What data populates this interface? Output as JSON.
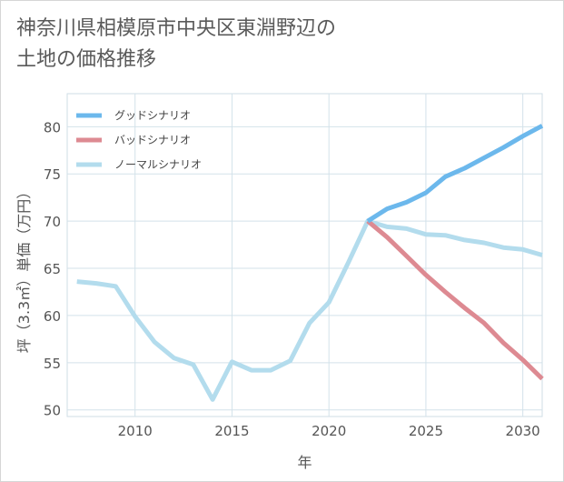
{
  "title_line1": "神奈川県相模原市中央区東淵野辺の",
  "title_line2": "土地の価格推移",
  "chart_data": {
    "type": "line",
    "xlabel": "年",
    "ylabel": "坪（3.3㎡）単価（万円）",
    "xlim": [
      2006.5,
      2031
    ],
    "ylim": [
      49.3,
      83.5
    ],
    "xticks": [
      2010,
      2015,
      2020,
      2025,
      2030
    ],
    "yticks": [
      50,
      55,
      60,
      65,
      70,
      75,
      80
    ],
    "grid": true,
    "legend_position": "top-left",
    "series": [
      {
        "name": "グッドシナリオ",
        "color": "#6cb8ec",
        "x": [
          2022,
          2023,
          2024,
          2025,
          2026,
          2027,
          2028,
          2029,
          2030,
          2031
        ],
        "y": [
          70.0,
          71.3,
          72.0,
          73.0,
          74.7,
          75.6,
          76.7,
          77.8,
          79.0,
          80.1
        ]
      },
      {
        "name": "バッドシナリオ",
        "color": "#dd8a92",
        "x": [
          2022,
          2023,
          2024,
          2025,
          2026,
          2027,
          2028,
          2029,
          2030,
          2031
        ],
        "y": [
          70.0,
          68.3,
          66.3,
          64.3,
          62.5,
          60.8,
          59.2,
          57.1,
          55.3,
          53.3
        ]
      },
      {
        "name": "ノーマルシナリオ",
        "color": "#b3dced",
        "x": [
          2007,
          2008,
          2009,
          2010,
          2011,
          2012,
          2013,
          2014,
          2015,
          2016,
          2017,
          2018,
          2019,
          2020,
          2021,
          2022,
          2023,
          2024,
          2025,
          2026,
          2027,
          2028,
          2029,
          2030,
          2031
        ],
        "y": [
          63.6,
          63.4,
          63.1,
          59.9,
          57.2,
          55.5,
          54.8,
          51.1,
          55.1,
          54.2,
          54.2,
          55.2,
          59.2,
          61.4,
          65.6,
          70.0,
          69.4,
          69.2,
          68.6,
          68.5,
          68.0,
          67.7,
          67.2,
          67.0,
          66.4
        ]
      }
    ]
  }
}
